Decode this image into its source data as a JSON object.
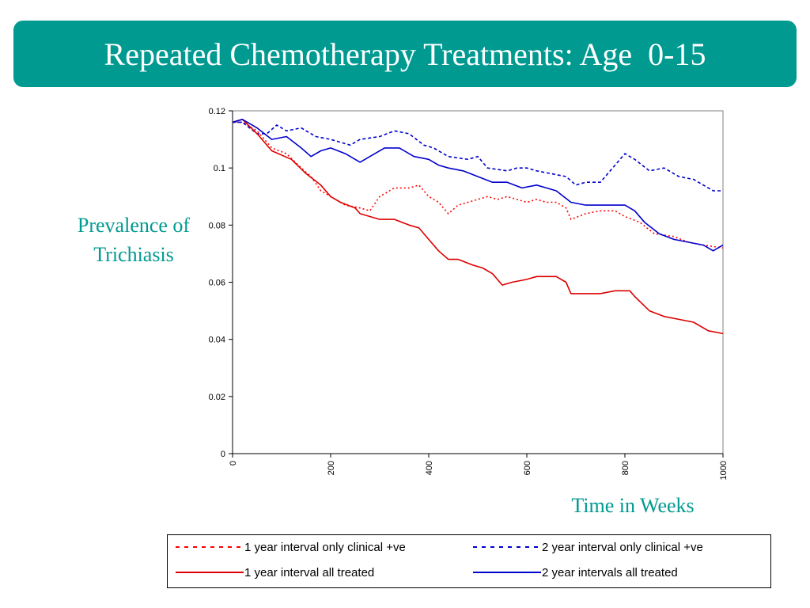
{
  "slide": {
    "title": "Repeated Chemotherapy Treatments: Age  0-15",
    "accent_color": "#009a91"
  },
  "chart_data": {
    "type": "line",
    "xlabel": "Time in Weeks",
    "ylabel": "Prevalence of Trichiasis",
    "xlim": [
      0,
      1000
    ],
    "ylim": [
      0,
      0.12
    ],
    "xticks": [
      "0",
      "200",
      "400",
      "600",
      "800",
      "1000"
    ],
    "yticks": [
      "0",
      "0.02",
      "0.04",
      "0.06",
      "0.08",
      "0.1",
      "0.12"
    ],
    "grid": false,
    "legend_position": "bottom",
    "series": [
      {
        "name": "1 year interval only clinical +ve",
        "color": "#ff0000",
        "style": "dotted",
        "x": [
          0,
          20,
          50,
          80,
          110,
          140,
          160,
          180,
          200,
          230,
          260,
          280,
          300,
          330,
          360,
          380,
          400,
          420,
          440,
          460,
          480,
          500,
          520,
          540,
          560,
          580,
          600,
          620,
          640,
          660,
          680,
          690,
          720,
          750,
          780,
          800,
          830,
          860,
          900,
          930,
          960,
          1000
        ],
        "y": [
          0.116,
          0.116,
          0.113,
          0.107,
          0.105,
          0.1,
          0.097,
          0.092,
          0.09,
          0.087,
          0.086,
          0.085,
          0.09,
          0.093,
          0.093,
          0.094,
          0.09,
          0.088,
          0.084,
          0.087,
          0.088,
          0.089,
          0.09,
          0.089,
          0.09,
          0.089,
          0.088,
          0.089,
          0.088,
          0.088,
          0.086,
          0.082,
          0.084,
          0.085,
          0.085,
          0.083,
          0.081,
          0.077,
          0.076,
          0.074,
          0.073,
          0.072
        ]
      },
      {
        "name": "2 year interval only clinical +ve",
        "color": "#0000cc",
        "style": "dashed",
        "x": [
          0,
          20,
          50,
          70,
          90,
          110,
          140,
          170,
          200,
          240,
          260,
          300,
          330,
          360,
          390,
          410,
          440,
          480,
          500,
          520,
          560,
          580,
          600,
          620,
          650,
          680,
          700,
          720,
          750,
          780,
          800,
          820,
          850,
          880,
          910,
          940,
          960,
          980,
          1000
        ],
        "y": [
          0.116,
          0.116,
          0.112,
          0.112,
          0.115,
          0.113,
          0.114,
          0.111,
          0.11,
          0.108,
          0.11,
          0.111,
          0.113,
          0.112,
          0.108,
          0.107,
          0.104,
          0.103,
          0.104,
          0.1,
          0.099,
          0.1,
          0.1,
          0.099,
          0.098,
          0.097,
          0.094,
          0.095,
          0.095,
          0.101,
          0.105,
          0.103,
          0.099,
          0.1,
          0.097,
          0.096,
          0.094,
          0.092,
          0.092
        ]
      },
      {
        "name": "1 year interval all treated",
        "color": "#dd0000",
        "style": "solid",
        "x": [
          0,
          20,
          50,
          80,
          120,
          150,
          180,
          200,
          220,
          250,
          260,
          280,
          300,
          330,
          360,
          380,
          400,
          420,
          440,
          460,
          490,
          510,
          530,
          550,
          570,
          600,
          620,
          640,
          660,
          680,
          690,
          720,
          750,
          780,
          810,
          820,
          850,
          880,
          910,
          940,
          970,
          1000
        ],
        "y": [
          0.116,
          0.117,
          0.112,
          0.106,
          0.103,
          0.098,
          0.094,
          0.09,
          0.088,
          0.086,
          0.084,
          0.083,
          0.082,
          0.082,
          0.08,
          0.079,
          0.075,
          0.071,
          0.068,
          0.068,
          0.066,
          0.065,
          0.063,
          0.059,
          0.06,
          0.061,
          0.062,
          0.062,
          0.062,
          0.06,
          0.056,
          0.056,
          0.056,
          0.057,
          0.057,
          0.055,
          0.05,
          0.048,
          0.047,
          0.046,
          0.043,
          0.042
        ]
      },
      {
        "name": "2 year intervals all treated",
        "color": "#0000cc",
        "style": "solid",
        "x": [
          0,
          20,
          50,
          80,
          110,
          140,
          160,
          180,
          200,
          230,
          260,
          280,
          310,
          340,
          370,
          400,
          420,
          440,
          470,
          500,
          530,
          560,
          590,
          620,
          640,
          660,
          690,
          720,
          750,
          780,
          800,
          820,
          840,
          870,
          900,
          930,
          960,
          980,
          1000
        ],
        "y": [
          0.116,
          0.117,
          0.114,
          0.11,
          0.111,
          0.107,
          0.104,
          0.106,
          0.107,
          0.105,
          0.102,
          0.104,
          0.107,
          0.107,
          0.104,
          0.103,
          0.101,
          0.1,
          0.099,
          0.097,
          0.095,
          0.095,
          0.093,
          0.094,
          0.093,
          0.092,
          0.088,
          0.087,
          0.087,
          0.087,
          0.087,
          0.085,
          0.081,
          0.077,
          0.075,
          0.074,
          0.073,
          0.071,
          0.073
        ]
      }
    ]
  }
}
